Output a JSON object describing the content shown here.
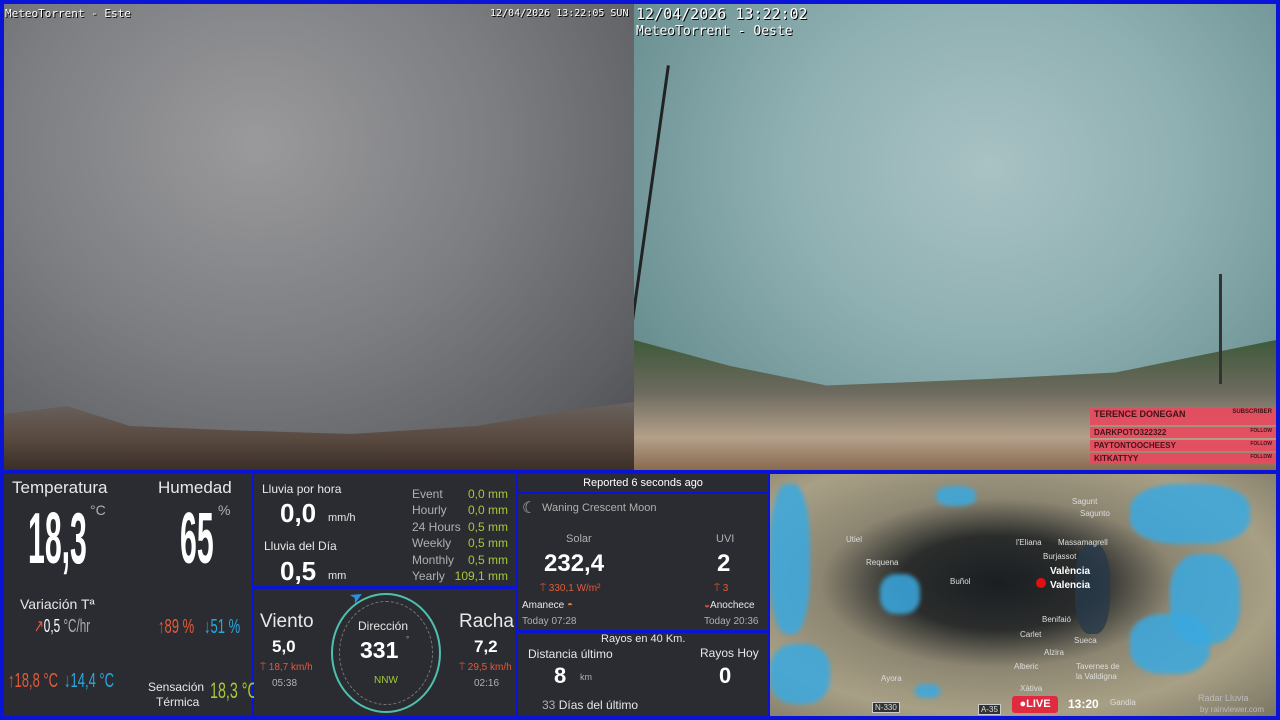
{
  "cameras": {
    "east": {
      "label": "MeteoTorrent - Este",
      "timestamp": "12/04/2026 13:22:05 SUN"
    },
    "west": {
      "timestamp": "12/04/2026 13:22:02",
      "label": "MeteoTorrent - Oeste"
    }
  },
  "chat_overlay": [
    {
      "name": "TERENCE DONEGAN",
      "tag": "SUBSCRIBER"
    },
    {
      "name": "DARKPOTO322322",
      "tag": "FOLLOW"
    },
    {
      "name": "PAYTONTOOCHEESY",
      "tag": "FOLLOW"
    },
    {
      "name": "KITKATTYY",
      "tag": "FOLLOW"
    }
  ],
  "temperature": {
    "title": "Temperatura",
    "value": "18,3",
    "unit": "°C",
    "variation_label": "Variación Tª",
    "variation": "0,5",
    "variation_unit": "°C/hr",
    "max": "18,8 °C",
    "min": "14,4 °C"
  },
  "humidity": {
    "title": "Humedad",
    "value": "65",
    "unit": "%",
    "max": "89 %",
    "min": "51 %",
    "feels_label_1": "Sensación",
    "feels_label_2": "Térmica",
    "feels": "18,3 °C"
  },
  "rain": {
    "hour_label": "Lluvia por hora",
    "hour_value": "0,0",
    "hour_unit": "mm/h",
    "day_label": "Lluvia del Día",
    "day_value": "0,5",
    "day_unit": "mm",
    "stats": [
      {
        "label": "Event",
        "value": "0,0 mm"
      },
      {
        "label": "Hourly",
        "value": "0,0 mm"
      },
      {
        "label": "24 Hours",
        "value": "0,5 mm"
      },
      {
        "label": "Weekly",
        "value": "0,5 mm"
      },
      {
        "label": "Monthly",
        "value": "0,5 mm"
      },
      {
        "label": "Yearly",
        "value": "109,1 mm"
      }
    ]
  },
  "wind": {
    "label": "Viento",
    "value": "5,0",
    "max": "18,7 km/h",
    "max_time": "05:38",
    "direction_label": "Dirección",
    "direction": "331",
    "direction_unit": "°",
    "cardinal": "NNW",
    "gust_label": "Racha",
    "gust": "7,2",
    "gust_max": "29,5 km/h",
    "gust_time": "02:16"
  },
  "report": {
    "text": "Reported 6 seconds ago"
  },
  "sun": {
    "moon": "Waning Crescent Moon",
    "solar_label": "Solar",
    "solar": "232,4",
    "solar_max": "330,1 W/m²",
    "uvi_label": "UVI",
    "uvi": "2",
    "uvi_max": "3",
    "sunrise_label": "Amanece",
    "sunrise": "Today 07:28",
    "sunset_label": "Anochece",
    "sunset": "Today 20:36"
  },
  "lightning": {
    "title": "Rayos en 40 Km.",
    "distance_label": "Distancia último",
    "distance": "8",
    "distance_unit": "km",
    "today_label": "Rayos Hoy",
    "today": "0",
    "days_value": "33",
    "days_label": "Días del último"
  },
  "map": {
    "live": "LIVE",
    "time": "13:20",
    "credit_1": "Radar Lluvia",
    "credit_2": "by rainviewer.com",
    "towns": [
      "Sagunt",
      "Sagunto",
      "Utiel",
      "Requena",
      "l'Eliana",
      "Massamagrell",
      "Burjassot",
      "València",
      "Valencia",
      "Buñol",
      "Benifaió",
      "Carlet",
      "Sueca",
      "Alzira",
      "Alberic",
      "Tavernes de la Valldigna",
      "Ayora",
      "Xàtiva",
      "Gandia",
      "N-330",
      "A-35"
    ]
  }
}
